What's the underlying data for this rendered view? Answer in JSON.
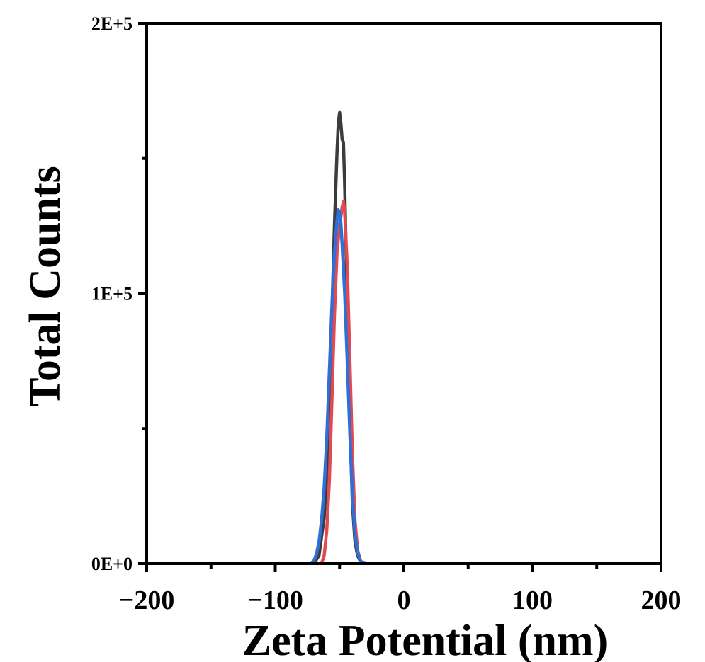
{
  "chart_data": {
    "type": "line",
    "title": "",
    "xlabel": "Zeta Potential (nm)",
    "ylabel": "Total Counts",
    "xlim": [
      -200,
      200
    ],
    "ylim": [
      0,
      200000
    ],
    "x_ticks": [
      {
        "value": -200,
        "label": "−200"
      },
      {
        "value": -100,
        "label": "−100"
      },
      {
        "value": 0,
        "label": "0"
      },
      {
        "value": 100,
        "label": "100"
      },
      {
        "value": 200,
        "label": "200"
      }
    ],
    "x_minor_ticks": [
      -150,
      -50,
      50,
      150
    ],
    "y_ticks": [
      {
        "value": 0,
        "label": "0E+0"
      },
      {
        "value": 100000,
        "label": "1E+5"
      },
      {
        "value": 200000,
        "label": "2E+5"
      }
    ],
    "y_minor_ticks": [
      50000,
      150000
    ],
    "grid": false,
    "legend": "none",
    "series": [
      {
        "color": "#3c3c3c",
        "x": [
          -70,
          -66,
          -62,
          -60,
          -58,
          -56,
          -54,
          -52,
          -51,
          -50,
          -49,
          -48,
          -47,
          -46,
          -44,
          -42,
          -40,
          -38,
          -36,
          -34,
          -32
        ],
        "y": [
          0,
          3000,
          17000,
          33000,
          60000,
          92000,
          125000,
          152000,
          163000,
          167000,
          163000,
          157000,
          156000,
          140000,
          95000,
          52000,
          22000,
          8000,
          3000,
          1000,
          0
        ]
      },
      {
        "color": "#e04a50",
        "x": [
          -64,
          -62,
          -60,
          -58,
          -56,
          -54,
          -52,
          -50,
          -48,
          -47,
          -46,
          -44,
          -42,
          -40,
          -38,
          -36,
          -34,
          -33,
          -32
        ],
        "y": [
          0,
          3000,
          12000,
          30000,
          60000,
          92000,
          115000,
          125000,
          132000,
          134000,
          130000,
          110000,
          75000,
          40000,
          16000,
          5000,
          1500,
          300,
          0
        ]
      },
      {
        "color": "#2f6fd6",
        "x": [
          -72,
          -70,
          -68,
          -66,
          -64,
          -62,
          -60,
          -58,
          -56,
          -54,
          -52,
          -51,
          -50,
          -49,
          -48,
          -46,
          -44,
          -42,
          -40,
          -38,
          -36,
          -34,
          -32,
          -30
        ],
        "y": [
          0,
          1000,
          3500,
          8000,
          16000,
          28000,
          46000,
          70000,
          95000,
          115000,
          127000,
          131000,
          130000,
          126000,
          118000,
          100000,
          75000,
          48000,
          25000,
          11000,
          4000,
          1200,
          300,
          0
        ]
      }
    ]
  }
}
